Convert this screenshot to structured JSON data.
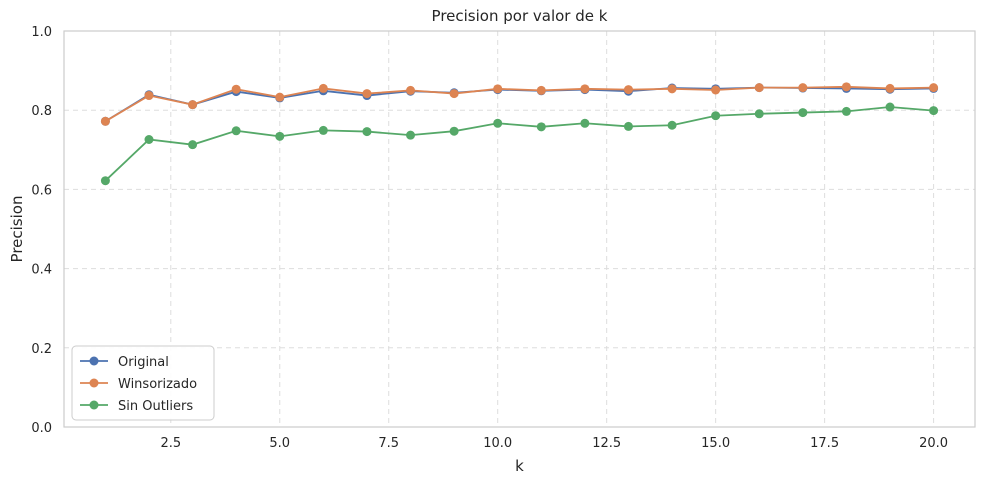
{
  "chart_data": {
    "type": "line",
    "title": "Precision por valor de k",
    "xlabel": "k",
    "ylabel": "Precision",
    "xlim": [
      0.05,
      20.95
    ],
    "ylim": [
      0,
      1.0
    ],
    "x_ticks": [
      2.5,
      5.0,
      7.5,
      10.0,
      12.5,
      15.0,
      17.5,
      20.0
    ],
    "x_tick_labels": [
      "2.5",
      "5.0",
      "7.5",
      "10.0",
      "12.5",
      "15.0",
      "17.5",
      "20.0"
    ],
    "y_ticks": [
      0.0,
      0.2,
      0.4,
      0.6,
      0.8,
      1.0
    ],
    "y_tick_labels": [
      "0.0",
      "0.2",
      "0.4",
      "0.6",
      "0.8",
      "1.0"
    ],
    "grid": true,
    "grid_style": "dashed",
    "legend_position": "lower-left",
    "x": [
      1,
      2,
      3,
      4,
      5,
      6,
      7,
      8,
      9,
      10,
      11,
      12,
      13,
      14,
      15,
      16,
      17,
      18,
      19,
      20
    ],
    "series": [
      {
        "name": "Original",
        "color": "#4c72b0",
        "values": [
          0.772,
          0.839,
          0.814,
          0.847,
          0.831,
          0.849,
          0.837,
          0.848,
          0.844,
          0.852,
          0.849,
          0.852,
          0.848,
          0.856,
          0.854,
          0.857,
          0.856,
          0.855,
          0.853,
          0.855
        ]
      },
      {
        "name": "Winsorizado",
        "color": "#dd8452",
        "values": [
          0.772,
          0.837,
          0.814,
          0.853,
          0.833,
          0.855,
          0.842,
          0.85,
          0.842,
          0.854,
          0.85,
          0.854,
          0.852,
          0.854,
          0.851,
          0.857,
          0.857,
          0.859,
          0.855,
          0.857
        ]
      },
      {
        "name": "Sin Outliers",
        "color": "#55a868",
        "values": [
          0.622,
          0.726,
          0.713,
          0.748,
          0.734,
          0.749,
          0.746,
          0.737,
          0.747,
          0.767,
          0.758,
          0.767,
          0.759,
          0.762,
          0.786,
          0.791,
          0.794,
          0.797,
          0.808,
          0.799
        ]
      }
    ]
  }
}
